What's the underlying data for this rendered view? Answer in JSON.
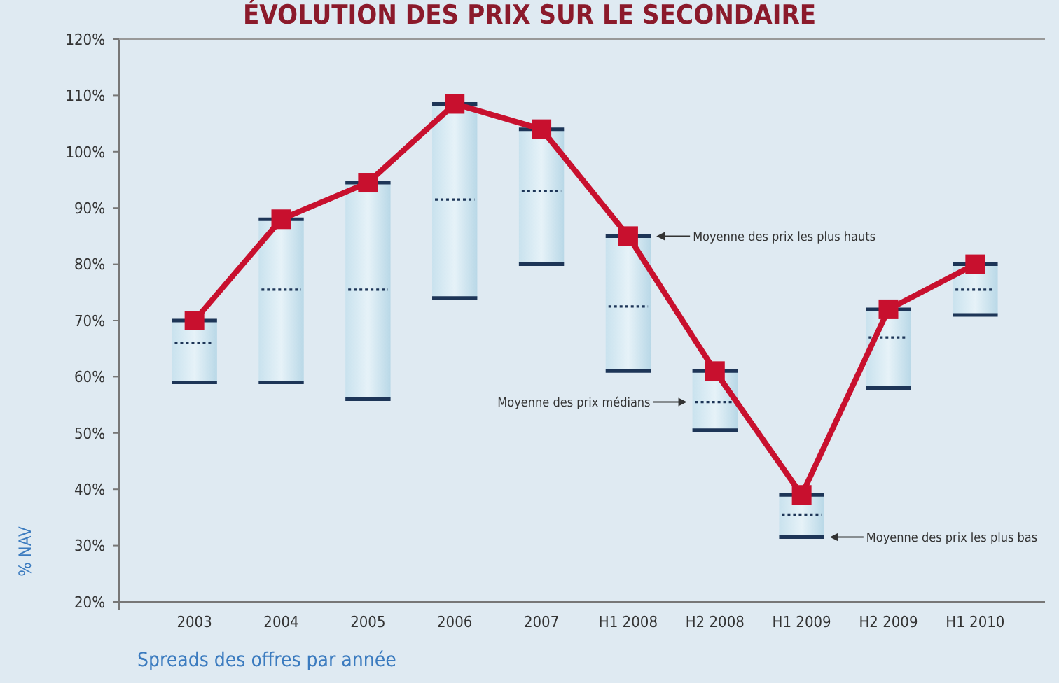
{
  "chart_data": {
    "type": "box",
    "title": "ÉVOLUTION DES PRIX SUR LE SECONDAIRE",
    "xlabel": "Spreads des offres par année",
    "ylabel": "% NAV",
    "categories": [
      "2003",
      "2004",
      "2005",
      "2006",
      "2007",
      "H1 2008",
      "H2 2008",
      "H1 2009",
      "H2 2009",
      "H1 2010"
    ],
    "boxes": [
      {
        "low": 59,
        "q1": 59,
        "median": 66,
        "q3": 70,
        "high": 70
      },
      {
        "low": 59,
        "q1": 59,
        "median": 75.5,
        "q3": 88,
        "high": 88
      },
      {
        "low": 56,
        "q1": 56,
        "median": 75.5,
        "q3": 94.5,
        "high": 94.5
      },
      {
        "low": 74,
        "q1": 74,
        "median": 91.5,
        "q3": 108.5,
        "high": 108.5
      },
      {
        "low": 80,
        "q1": 80,
        "median": 93,
        "q3": 104,
        "high": 104
      },
      {
        "low": 61,
        "q1": 61,
        "median": 72.5,
        "q3": 85,
        "high": 85
      },
      {
        "low": 50.5,
        "q1": 50.5,
        "median": 55.5,
        "q3": 61,
        "high": 61
      },
      {
        "low": 31.5,
        "q1": 31.5,
        "median": 35.5,
        "q3": 39,
        "high": 39
      },
      {
        "low": 58,
        "q1": 58,
        "median": 67,
        "q3": 72,
        "high": 72
      },
      {
        "low": 71,
        "q1": 71,
        "median": 75.5,
        "q3": 80,
        "high": 80
      }
    ],
    "series": [
      {
        "type": "line",
        "color": "#c8102e",
        "marker": "square",
        "values": [
          70,
          88,
          94.5,
          108.5,
          104,
          85,
          61,
          39,
          72,
          80
        ]
      }
    ],
    "ylim": [
      20,
      120
    ],
    "yticks": [
      {
        "value": 20,
        "label": "20%"
      },
      {
        "value": 30,
        "label": "30%"
      },
      {
        "value": 40,
        "label": "40%"
      },
      {
        "value": 50,
        "label": "50%"
      },
      {
        "value": 60,
        "label": "60%"
      },
      {
        "value": 70,
        "label": "70%"
      },
      {
        "value": 80,
        "label": "80%"
      },
      {
        "value": 90,
        "label": "90%"
      },
      {
        "value": 100,
        "label": "100%"
      },
      {
        "value": 110,
        "label": "110%"
      },
      {
        "value": 120,
        "label": "120%"
      }
    ],
    "annotations": [
      "Moyenne des prix les plus hauts",
      "Moyenne des prix médians",
      "Moyenne des prix les plus bas"
    ]
  }
}
